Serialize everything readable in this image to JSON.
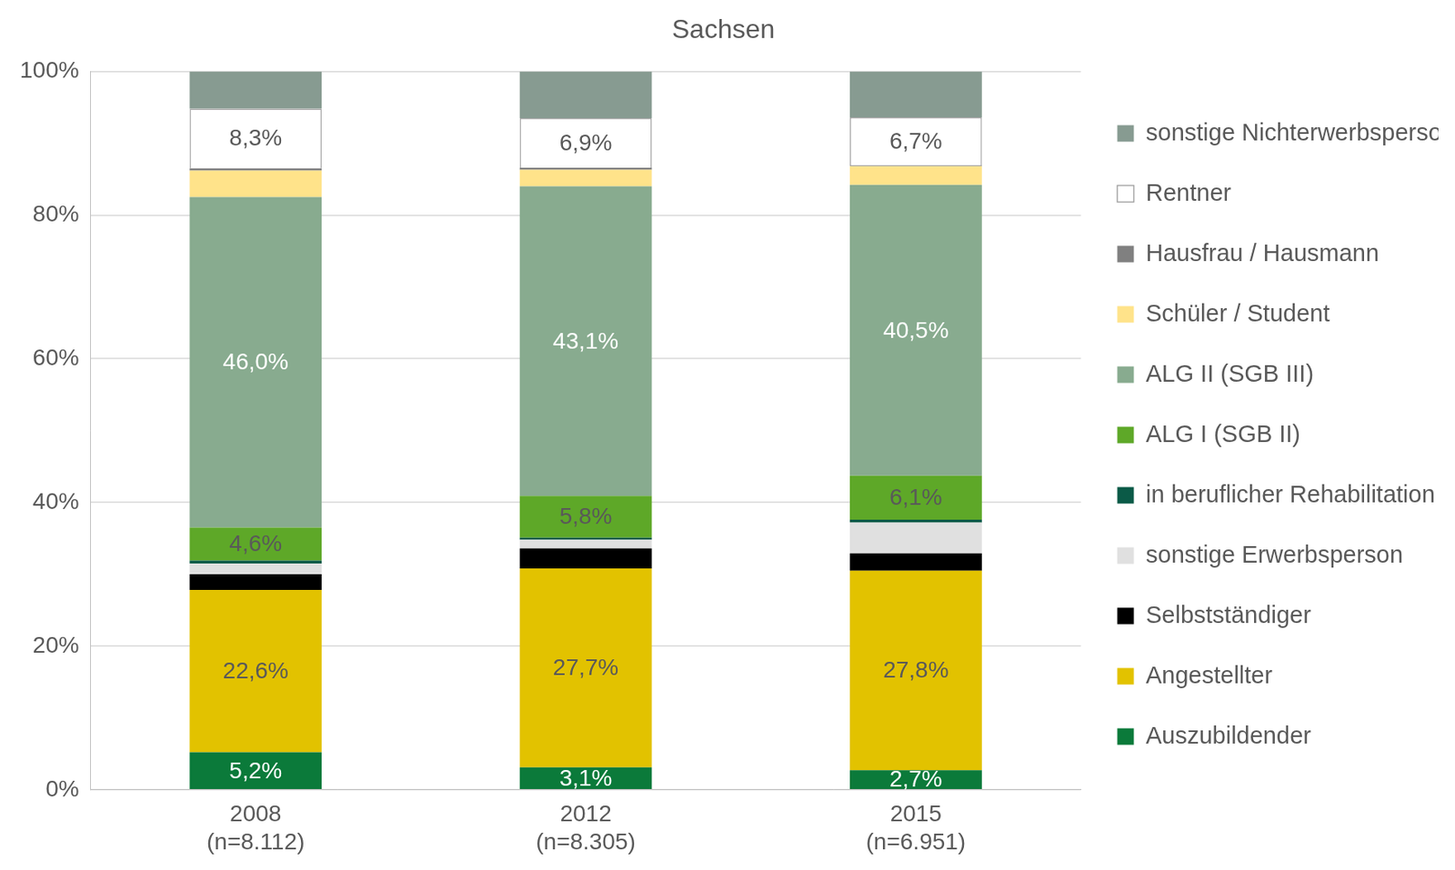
{
  "chart_data": {
    "type": "bar",
    "title": "Sachsen",
    "orientation": "vertical",
    "stacked": true,
    "legend": "right",
    "grid": true,
    "categories": [
      [
        "2008",
        "(n=8.112)"
      ],
      [
        "2012",
        "(n=8.305)"
      ],
      [
        "2015",
        "(n=6.951)"
      ]
    ],
    "ylim": [
      0,
      100
    ],
    "yticks": [
      {
        "value": 0,
        "label": "0%"
      },
      {
        "value": 20,
        "label": "20%"
      },
      {
        "value": 40,
        "label": "40%"
      },
      {
        "value": 60,
        "label": "60%"
      },
      {
        "value": 80,
        "label": "80%"
      },
      {
        "value": 100,
        "label": "100%"
      }
    ],
    "series": [
      {
        "name": "Auszubildender",
        "color": "#0b7a3a",
        "values": [
          5.2,
          3.1,
          2.7
        ],
        "data_labels": true,
        "value_labels": [
          "5,2%",
          "3,1%",
          "2,7%"
        ]
      },
      {
        "name": "Angestellter",
        "color": "#e2c200",
        "values": [
          22.6,
          27.7,
          27.8
        ],
        "data_labels": true,
        "value_labels": [
          "22,6%",
          "27,7%",
          "27,8%"
        ]
      },
      {
        "name": "Selbstständiger",
        "color": "#000000",
        "values": [
          2.2,
          2.8,
          2.4
        ]
      },
      {
        "name": "sonstige Erwerbsperson",
        "color": "#e0e0e0",
        "values": [
          1.5,
          1.2,
          4.3
        ]
      },
      {
        "name": "in beruflicher Rehabilitation",
        "color": "#0b5a47",
        "values": [
          0.4,
          0.3,
          0.4
        ]
      },
      {
        "name": "ALG I (SGB II)",
        "color": "#5ea828",
        "values": [
          4.6,
          5.8,
          6.1
        ],
        "data_labels": true,
        "value_labels": [
          "4,6%",
          "5,8%",
          "6,1%"
        ]
      },
      {
        "name": "ALG II (SGB III)",
        "color": "#88ab8f",
        "values": [
          46.0,
          43.1,
          40.5
        ],
        "data_labels": true,
        "value_labels": [
          "46,0%",
          "43,1%",
          "40,5%"
        ]
      },
      {
        "name": "Schüler / Student",
        "color": "#ffe38a",
        "values": [
          3.7,
          2.3,
          2.6
        ]
      },
      {
        "name": "Hausfrau / Hausmann",
        "color": "#808080",
        "values": [
          0.3,
          0.3,
          0.1
        ]
      },
      {
        "name": "Rentner",
        "color": "#ffffff",
        "values": [
          8.3,
          6.9,
          6.7
        ],
        "data_labels": true,
        "value_labels": [
          "8,3%",
          "6,9%",
          "6,7%"
        ]
      },
      {
        "name": "sonstige Nichterwerbsperson",
        "color": "#879b91",
        "values": [
          5.2,
          6.5,
          6.4
        ]
      }
    ]
  }
}
